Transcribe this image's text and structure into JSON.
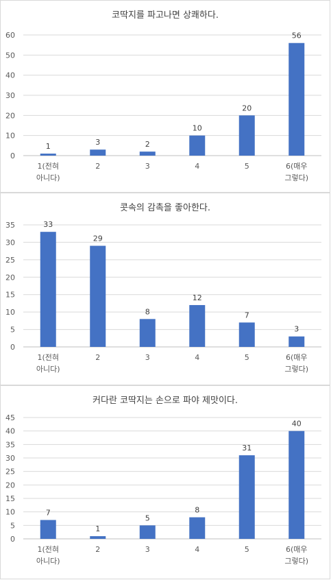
{
  "chart_data": [
    {
      "type": "bar",
      "title": "코딱지를 파고나면 상쾌하다.",
      "categories": [
        [
          "1(전혀",
          "아니다)"
        ],
        [
          "2"
        ],
        [
          "3"
        ],
        [
          "4"
        ],
        [
          "5"
        ],
        [
          "6(매우",
          "그렇다)"
        ]
      ],
      "values": [
        1,
        3,
        2,
        10,
        20,
        56
      ],
      "ylim": [
        0,
        60
      ],
      "yticks": [
        0,
        10,
        20,
        30,
        40,
        50,
        60
      ],
      "bar_color": "#4472c4",
      "grid": true
    },
    {
      "type": "bar",
      "title": "콧속의 감촉을 좋아한다.",
      "categories": [
        [
          "1(전혀",
          "아니다)"
        ],
        [
          "2"
        ],
        [
          "3"
        ],
        [
          "4"
        ],
        [
          "5"
        ],
        [
          "6(매우",
          "그렇다)"
        ]
      ],
      "values": [
        33,
        29,
        8,
        12,
        7,
        3
      ],
      "ylim": [
        0,
        35
      ],
      "yticks": [
        0,
        5,
        10,
        15,
        20,
        25,
        30,
        35
      ],
      "bar_color": "#4472c4",
      "grid": true
    },
    {
      "type": "bar",
      "title": "커다란 코딱지는 손으로 파야 제맛이다.",
      "categories": [
        [
          "1(전혀",
          "아니다)"
        ],
        [
          "2"
        ],
        [
          "3"
        ],
        [
          "4"
        ],
        [
          "5"
        ],
        [
          "6(매우",
          "그렇다)"
        ]
      ],
      "values": [
        7,
        1,
        5,
        8,
        31,
        40
      ],
      "ylim": [
        0,
        45
      ],
      "yticks": [
        0,
        5,
        10,
        15,
        20,
        25,
        30,
        35,
        40,
        45
      ],
      "bar_color": "#4472c4",
      "grid": true
    }
  ]
}
